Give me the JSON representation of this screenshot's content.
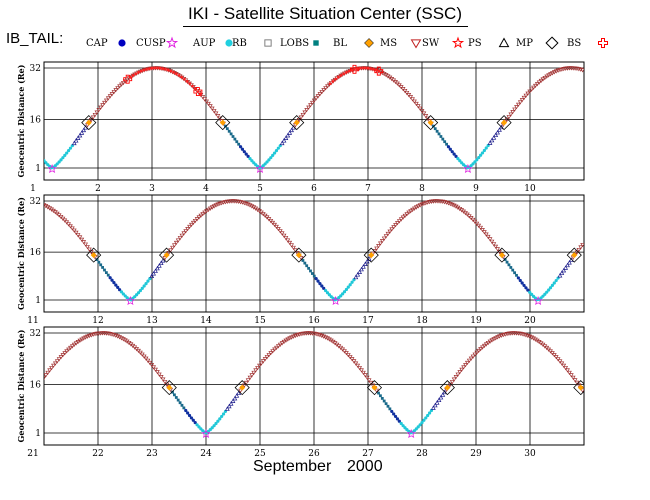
{
  "title": "IKI - Satellite Situation Center (SSC)",
  "legend_title": "IB_TAIL:",
  "legend": [
    {
      "label": "CAP",
      "color": "#0000c0",
      "marker": "dot"
    },
    {
      "label": "CUSP",
      "color": "#e020e0",
      "marker": "star"
    },
    {
      "label": "AUP",
      "color": "#20d0e0",
      "marker": "dot"
    },
    {
      "label": "RB",
      "color": "#808080",
      "marker": "square"
    },
    {
      "label": "LOBS",
      "color": "#008080",
      "marker": "square-filled"
    },
    {
      "label": "BL",
      "color": "#ffa000",
      "marker": "diamond-dot"
    },
    {
      "label": "MS",
      "color": "#c02020",
      "marker": "triangle-down"
    },
    {
      "label": "SW",
      "color": "#ff0000",
      "marker": "star"
    },
    {
      "label": "PS",
      "color": "#000000",
      "marker": "triangle"
    },
    {
      "label": "MP",
      "color": "#000000",
      "marker": "diamond"
    },
    {
      "label": "BS",
      "color": "#ff0000",
      "marker": "cross"
    }
  ],
  "footer": {
    "month": "September",
    "year": "2000"
  },
  "chart_data": [
    {
      "type": "scatter",
      "ylabel": "Geocentric Distance (Re)",
      "xlim": [
        1,
        11
      ],
      "ylim": [
        1,
        32
      ],
      "yticks": [
        1,
        16,
        32
      ],
      "xticks": [
        "1",
        "2",
        "3",
        "4",
        "5",
        "6",
        "7",
        "8",
        "9",
        "10"
      ],
      "perigees": [
        1.15,
        5.0,
        8.85
      ],
      "apogee_re": 32
    },
    {
      "type": "scatter",
      "ylabel": "Geocentric Distance (Re)",
      "xlim": [
        11,
        21
      ],
      "ylim": [
        1,
        32
      ],
      "yticks": [
        1,
        16,
        32
      ],
      "xticks": [
        "11",
        "12",
        "13",
        "14",
        "15",
        "16",
        "17",
        "18",
        "19",
        "20"
      ],
      "perigees": [
        12.6,
        16.4,
        20.15
      ],
      "apogee_re": 32
    },
    {
      "type": "scatter",
      "ylabel": "Geocentric Distance (Re)",
      "xlim": [
        21,
        31
      ],
      "ylim": [
        1,
        32
      ],
      "yticks": [
        1,
        16,
        32
      ],
      "xticks": [
        "21",
        "22",
        "23",
        "24",
        "25",
        "26",
        "27",
        "28",
        "29",
        "30"
      ],
      "perigees": [
        24.0,
        27.8
      ],
      "apogee_re": 32
    }
  ]
}
